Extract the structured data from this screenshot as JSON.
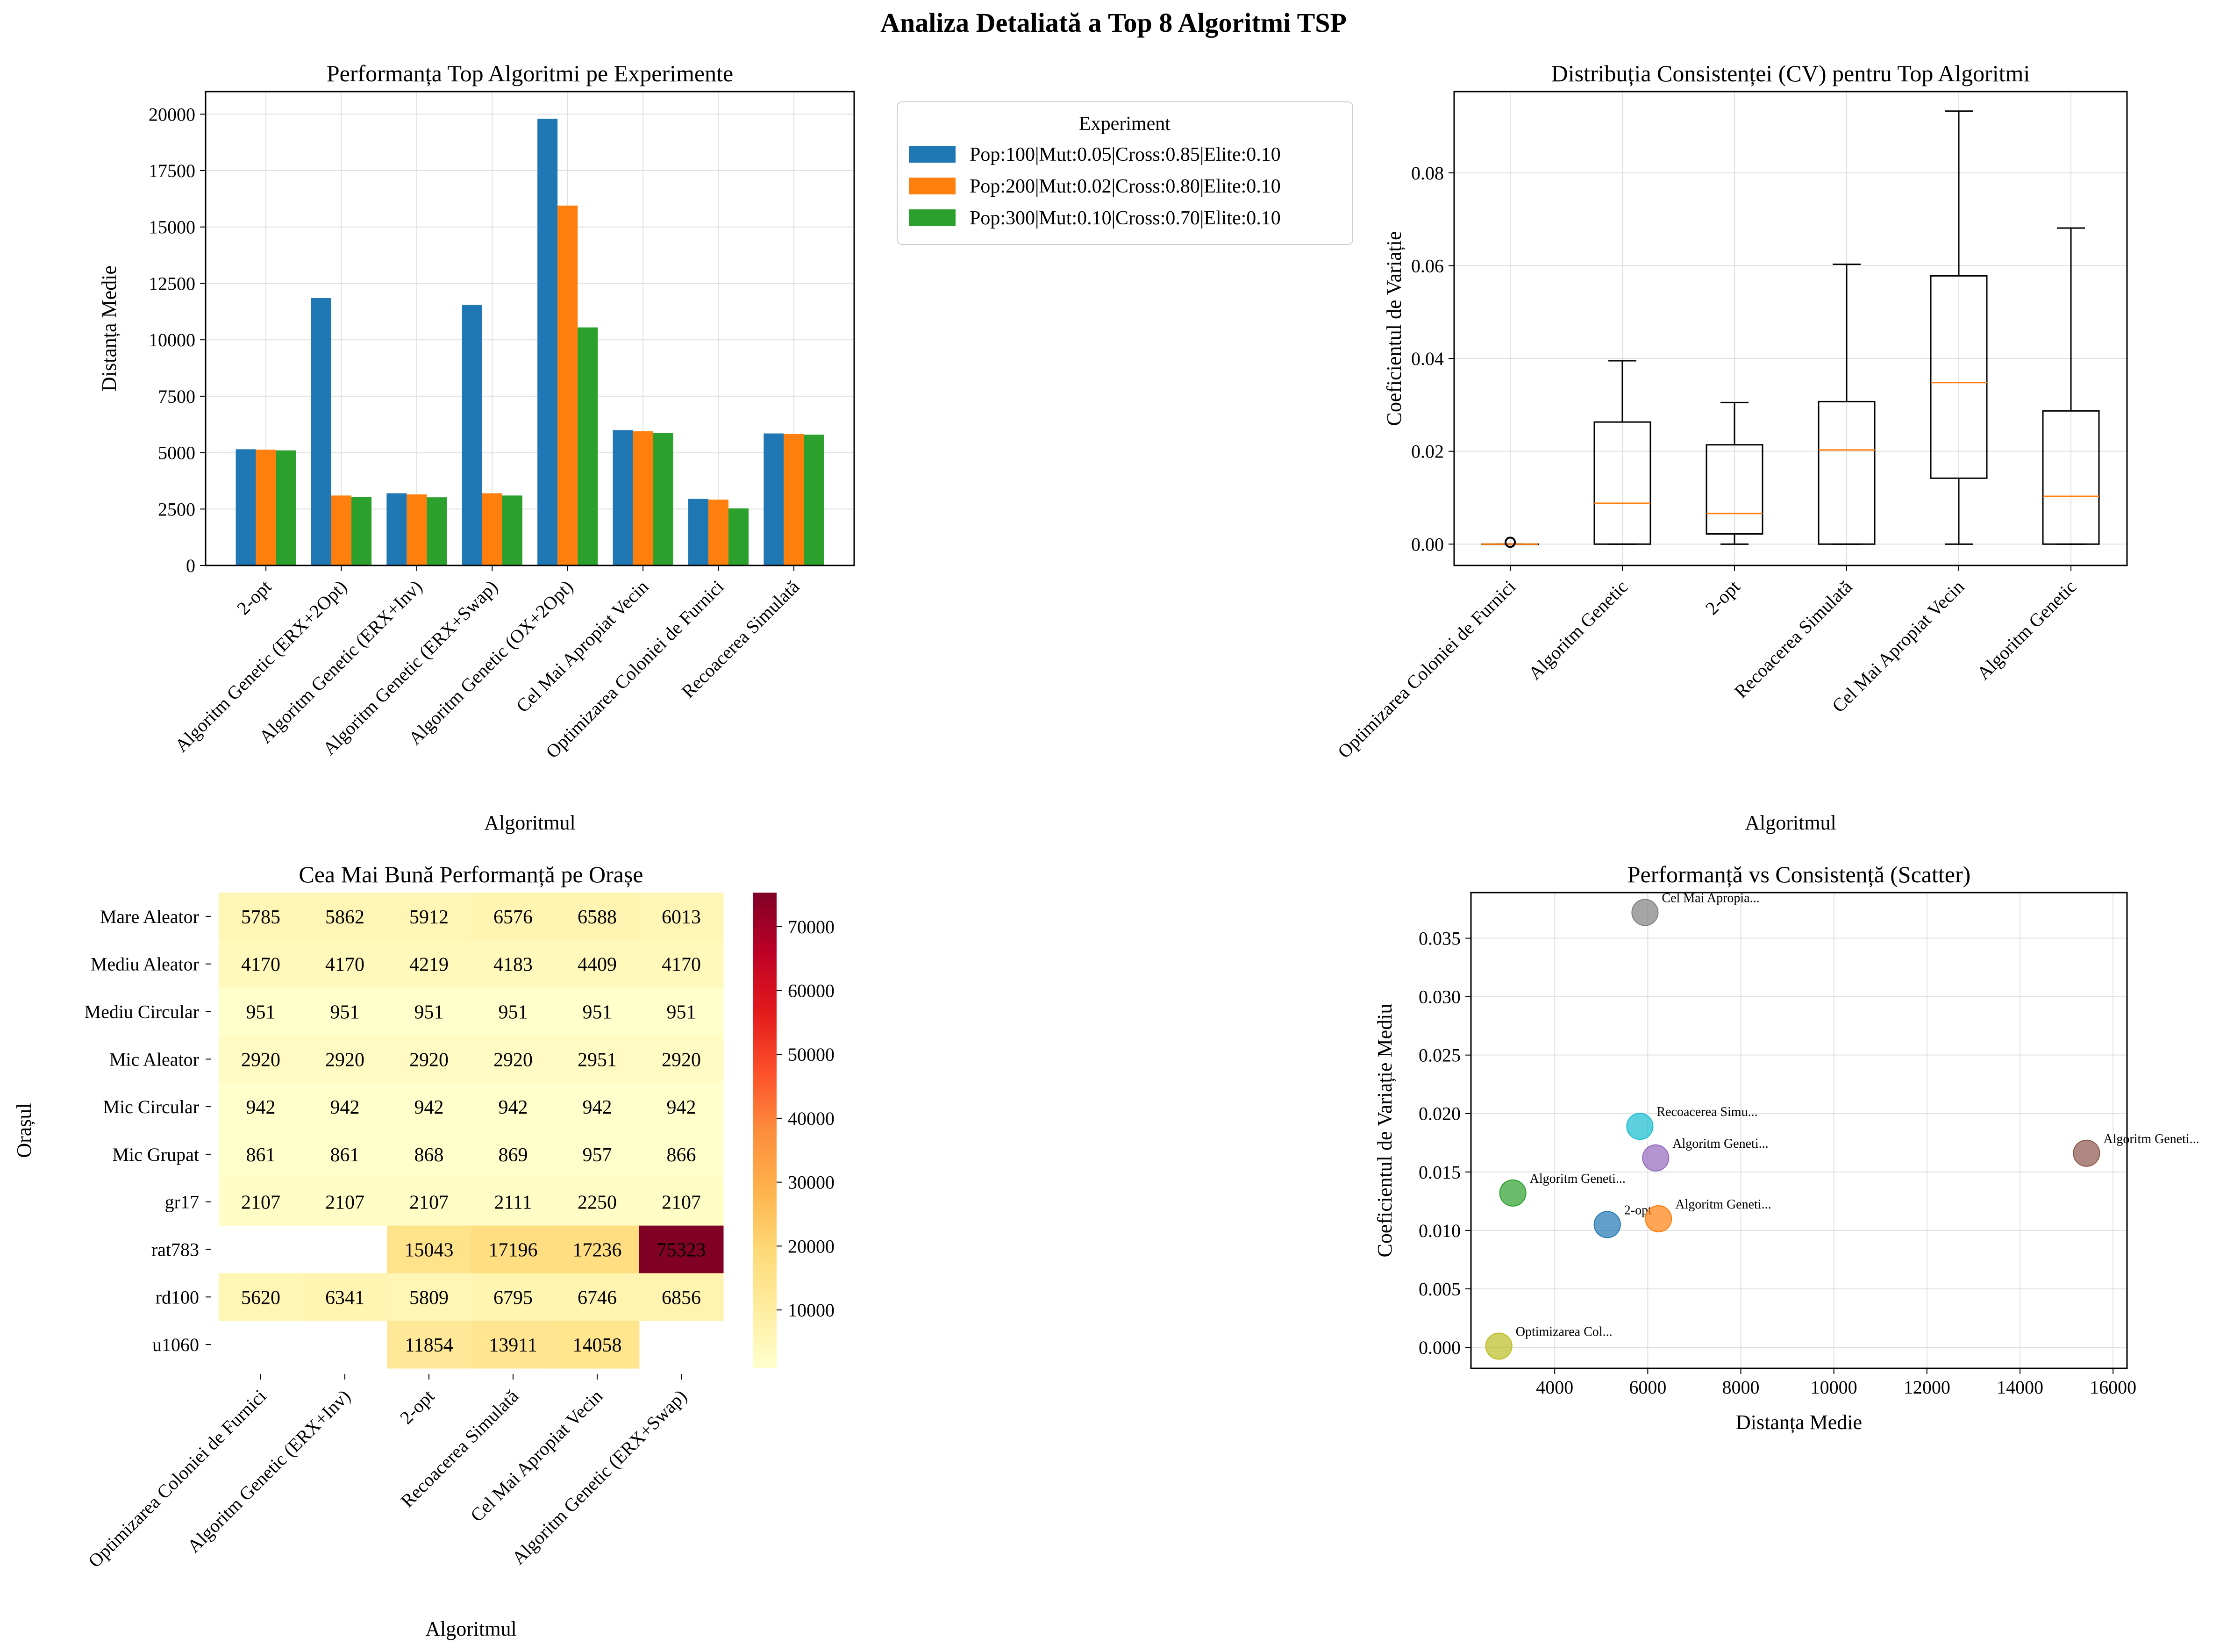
{
  "suptitle": "Analiza Detaliată a Top 8 Algoritmi TSP",
  "chart_data": [
    {
      "type": "bar",
      "title": "Performanța Top Algoritmi pe Experimente",
      "xlabel": "Algoritmul",
      "ylabel": "Distanța Medie",
      "ylim": [
        0,
        21000
      ],
      "yticks": [
        0,
        2500,
        5000,
        7500,
        10000,
        12500,
        15000,
        17500,
        20000
      ],
      "grid": true,
      "legend_title": "Experiment",
      "legend_position": "outside-right",
      "categories": [
        "2-opt",
        "Algoritm Genetic (ERX+2Opt)",
        "Algoritm Genetic (ERX+Inv)",
        "Algoritm Genetic (ERX+Swap)",
        "Algoritm Genetic (OX+2Opt)",
        "Cel Mai Apropiat Vecin",
        "Optimizarea Coloniei de Furnici",
        "Recoacerea Simulată"
      ],
      "series": [
        {
          "name": "Pop:100|Mut:0.05|Cross:0.85|Elite:0.10",
          "color": "#1f77b4",
          "values": [
            5150,
            11850,
            3200,
            11550,
            19800,
            6000,
            2950,
            5850
          ]
        },
        {
          "name": "Pop:200|Mut:0.02|Cross:0.80|Elite:0.10",
          "color": "#ff7f0e",
          "values": [
            5130,
            3100,
            3150,
            3200,
            15950,
            5950,
            2920,
            5830
          ]
        },
        {
          "name": "Pop:300|Mut:0.10|Cross:0.70|Elite:0.10",
          "color": "#2ca02c",
          "values": [
            5100,
            3030,
            3020,
            3100,
            10550,
            5880,
            2530,
            5800
          ]
        }
      ]
    },
    {
      "type": "box",
      "title": "Distribuția Consistenței (CV) pentru Top Algoritmi",
      "xlabel": "Algoritmul",
      "ylabel": "Coeficientul de Variație",
      "ylim": [
        -0.0046,
        0.0975
      ],
      "yticks": [
        0.0,
        0.02,
        0.04,
        0.06,
        0.08
      ],
      "ytick_labels": [
        "0.00",
        "0.02",
        "0.04",
        "0.06",
        "0.08"
      ],
      "grid": true,
      "median_color": "#ff7f0e",
      "categories": [
        "Optimizarea Coloniei de Furnici",
        "Algoritm Genetic",
        "2-opt",
        "Recoacerea Simulată",
        "Cel Mai Apropiat Vecin",
        "Algoritm Genetic"
      ],
      "boxes": [
        {
          "whislo": 0.0,
          "q1": 0.0,
          "med": 0.0,
          "q3": 0.0,
          "whishi": 0.0,
          "fliers": [
            0.0004
          ]
        },
        {
          "whislo": 0.0,
          "q1": 0.0,
          "med": 0.0088,
          "q3": 0.0263,
          "whishi": 0.0395,
          "fliers": []
        },
        {
          "whislo": 0.0,
          "q1": 0.0022,
          "med": 0.0066,
          "q3": 0.0214,
          "whishi": 0.0305,
          "fliers": []
        },
        {
          "whislo": 0.0,
          "q1": 0.0,
          "med": 0.0203,
          "q3": 0.0307,
          "whishi": 0.0603,
          "fliers": []
        },
        {
          "whislo": 0.0,
          "q1": 0.0142,
          "med": 0.0348,
          "q3": 0.0578,
          "whishi": 0.0933,
          "fliers": []
        },
        {
          "whislo": 0.0,
          "q1": 0.0,
          "med": 0.0103,
          "q3": 0.0287,
          "whishi": 0.0681,
          "fliers": []
        }
      ]
    },
    {
      "type": "heatmap",
      "title": "Cea Mai Bună Performanță pe Orașe",
      "xlabel": "Algoritmul",
      "ylabel": "Orașul",
      "colormap": "YlOrRd",
      "vmin": 861,
      "vmax": 75323,
      "colorbar_ticks": [
        10000,
        20000,
        30000,
        40000,
        50000,
        60000,
        70000
      ],
      "x": [
        "Optimizarea Coloniei de Furnici",
        "Algoritm Genetic (ERX+Inv)",
        "2-opt",
        "Recoacerea Simulată",
        "Cel Mai Apropiat Vecin",
        "Algoritm Genetic (ERX+Swap)"
      ],
      "y": [
        "Mare Aleator",
        "Mediu Aleator",
        "Mediu Circular",
        "Mic Aleator",
        "Mic Circular",
        "Mic Grupat",
        "gr17",
        "rat783",
        "rd100",
        "u1060"
      ],
      "values": [
        [
          5785,
          5862,
          5912,
          6576,
          6588,
          6013
        ],
        [
          4170,
          4170,
          4219,
          4183,
          4409,
          4170
        ],
        [
          951,
          951,
          951,
          951,
          951,
          951
        ],
        [
          2920,
          2920,
          2920,
          2920,
          2951,
          2920
        ],
        [
          942,
          942,
          942,
          942,
          942,
          942
        ],
        [
          861,
          861,
          868,
          869,
          957,
          866
        ],
        [
          2107,
          2107,
          2107,
          2111,
          2250,
          2107
        ],
        [
          null,
          null,
          15043,
          17196,
          17236,
          75323
        ],
        [
          5620,
          6341,
          5809,
          6795,
          6746,
          6856
        ],
        [
          null,
          null,
          11854,
          13911,
          14058,
          null
        ]
      ]
    },
    {
      "type": "scatter",
      "title": "Performanță vs Consistență (Scatter)",
      "xlabel": "Distanța Medie",
      "ylabel": "Coeficientul de Variație Mediu",
      "xlim": [
        2200,
        16300
      ],
      "ylim": [
        -0.0018,
        0.0389
      ],
      "xticks": [
        4000,
        6000,
        8000,
        10000,
        12000,
        14000,
        16000
      ],
      "yticks": [
        0.0,
        0.005,
        0.01,
        0.015,
        0.02,
        0.025,
        0.03,
        0.035
      ],
      "ytick_labels": [
        "0.000",
        "0.005",
        "0.010",
        "0.015",
        "0.020",
        "0.025",
        "0.030",
        "0.035"
      ],
      "grid": true,
      "points": [
        {
          "label": "2-opt",
          "x": 5130,
          "y": 0.0105,
          "color": "#1f77b4"
        },
        {
          "label": "Algoritm Geneti...",
          "x": 6230,
          "y": 0.011,
          "color": "#ff7f0e"
        },
        {
          "label": "Algoritm Geneti...",
          "x": 3100,
          "y": 0.0132,
          "color": "#2ca02c"
        },
        {
          "label": "Algoritm Geneti...",
          "x": 6170,
          "y": 0.0162,
          "color": "#9467bd"
        },
        {
          "label": "Algoritm Geneti...",
          "x": 15430,
          "y": 0.0166,
          "color": "#8c564b"
        },
        {
          "label": "Cel Mai Apropia...",
          "x": 5940,
          "y": 0.0372,
          "color": "#7f7f7f"
        },
        {
          "label": "Recoacerea Simu...",
          "x": 5830,
          "y": 0.0189,
          "color": "#17becf"
        },
        {
          "label": "Optimizarea Col...",
          "x": 2800,
          "y": 0.0001,
          "color": "#bcbd22"
        }
      ]
    }
  ]
}
